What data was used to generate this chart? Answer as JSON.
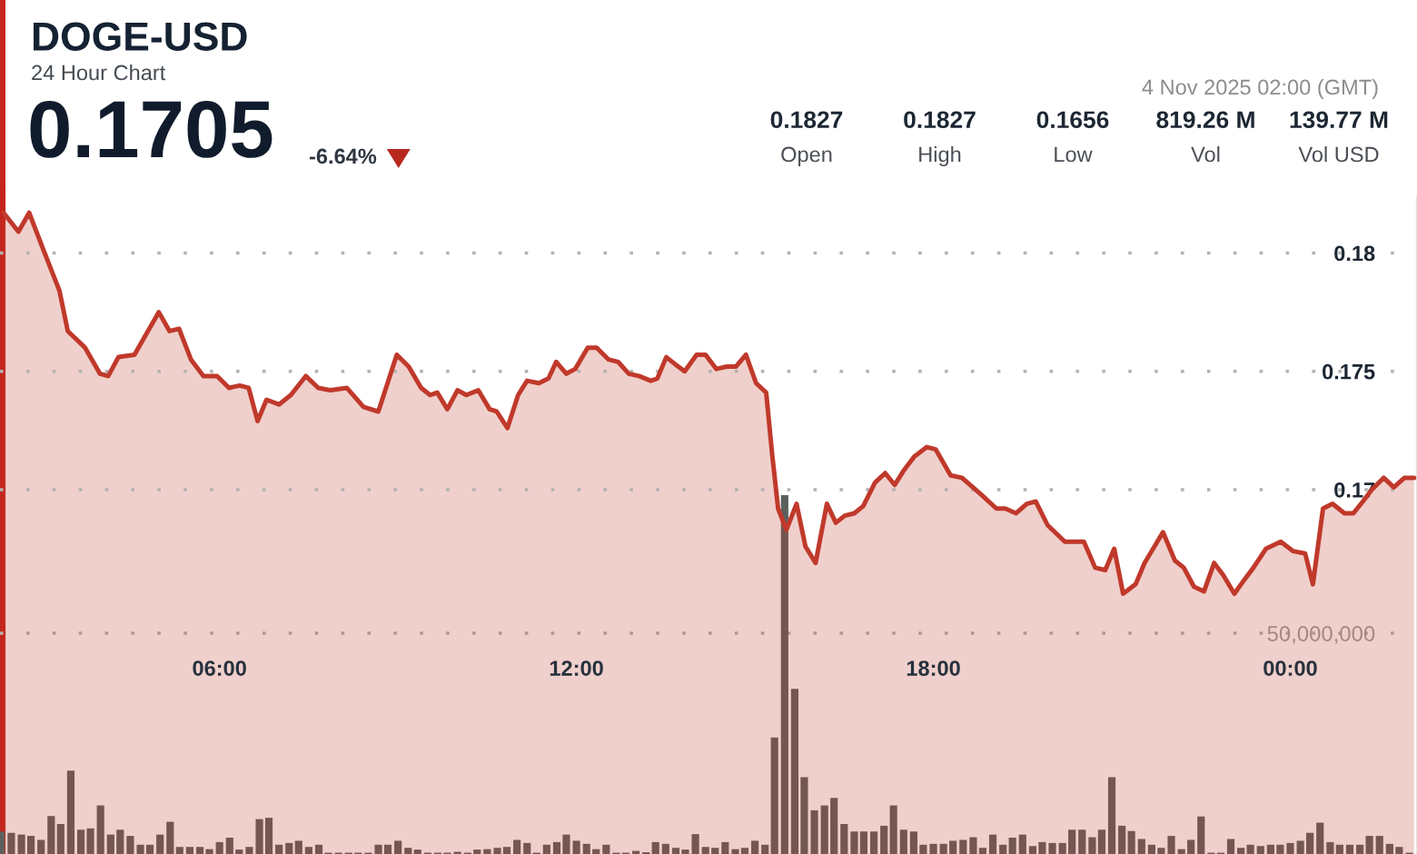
{
  "chart_data": {
    "type": "area",
    "title": "DOGE-USD",
    "subtitle": "24 Hour Chart",
    "annotations": [
      "0.1705",
      "-6.64%",
      "4 Nov 2025 02:00 (GMT)",
      "0.1827",
      "Open",
      "0.1827",
      "High",
      "0.1656",
      "Low",
      "819.26 M",
      "Vol",
      "139.77 M",
      "Vol USD"
    ],
    "xlim": [
      2.31,
      26.13
    ],
    "xticks": [
      {
        "value": 6,
        "label": "06:00"
      },
      {
        "value": 12,
        "label": "12:00"
      },
      {
        "value": 18,
        "label": "18:00"
      },
      {
        "value": 24,
        "label": "00:00"
      }
    ],
    "ylim": [
      0.1546,
      0.1824
    ],
    "yticks": [
      0.17,
      0.175,
      0.18
    ],
    "y2lim": [
      0,
      149000000
    ],
    "y2ticks": [
      {
        "value": 50000000,
        "label": "50,000,000"
      }
    ],
    "grid": "y",
    "series": [
      {
        "color": "#c0392b",
        "x": [
          2.37,
          2.62,
          2.8,
          3.03,
          3.31,
          3.45,
          3.74,
          3.99,
          4.13,
          4.3,
          4.57,
          4.98,
          5.16,
          5.32,
          5.52,
          5.73,
          5.96,
          6.16,
          6.34,
          6.49,
          6.64,
          6.79,
          7.0,
          7.2,
          7.45,
          7.66,
          7.86,
          8.14,
          8.42,
          8.67,
          8.98,
          9.18,
          9.39,
          9.54,
          9.66,
          9.83,
          10.0,
          10.15,
          10.35,
          10.54,
          10.66,
          10.84,
          11.02,
          11.17,
          11.37,
          11.53,
          11.66,
          11.83,
          11.98,
          12.19,
          12.34,
          12.54,
          12.7,
          12.88,
          13.05,
          13.25,
          13.36,
          13.51,
          13.66,
          13.82,
          14.02,
          14.17,
          14.35,
          14.53,
          14.68,
          14.85,
          15.02,
          15.19,
          15.29,
          15.39,
          15.53,
          15.7,
          15.85,
          16.02,
          16.21,
          16.36,
          16.51,
          16.67,
          16.82,
          17.02,
          17.19,
          17.35,
          17.5,
          17.68,
          17.89,
          18.04,
          18.29,
          18.48,
          18.8,
          19.06,
          19.21,
          19.39,
          19.57,
          19.72,
          19.92,
          20.21,
          20.53,
          20.72,
          20.89,
          21.04,
          21.19,
          21.4,
          21.55,
          21.86,
          22.06,
          22.21,
          22.38,
          22.55,
          22.72,
          22.87,
          23.06,
          23.23,
          23.38,
          23.59,
          23.84,
          24.05,
          24.25,
          24.38,
          24.55,
          24.71,
          24.91,
          25.06,
          25.22,
          25.37,
          25.57,
          25.74,
          25.92,
          26.08
        ],
        "values": [
          0.1817,
          0.1809,
          0.1817,
          0.1802,
          0.1784,
          0.1767,
          0.176,
          0.1749,
          0.1748,
          0.1756,
          0.1757,
          0.1775,
          0.1767,
          0.1768,
          0.1755,
          0.1748,
          0.1748,
          0.1743,
          0.1744,
          0.1743,
          0.1729,
          0.1738,
          0.1736,
          0.174,
          0.1748,
          0.1743,
          0.1742,
          0.1743,
          0.1735,
          0.1733,
          0.1757,
          0.1752,
          0.1743,
          0.174,
          0.1741,
          0.1734,
          0.1742,
          0.174,
          0.1742,
          0.1734,
          0.1733,
          0.1726,
          0.174,
          0.1746,
          0.1745,
          0.1747,
          0.1754,
          0.1749,
          0.1751,
          0.176,
          0.176,
          0.1755,
          0.1754,
          0.1749,
          0.1748,
          0.1746,
          0.1747,
          0.1756,
          0.1753,
          0.175,
          0.1757,
          0.1757,
          0.1751,
          0.1752,
          0.1752,
          0.1757,
          0.1745,
          0.1741,
          0.1715,
          0.1692,
          0.1683,
          0.1694,
          0.1676,
          0.1669,
          0.1694,
          0.1686,
          0.1689,
          0.169,
          0.1693,
          0.1703,
          0.1707,
          0.1702,
          0.1708,
          0.1714,
          0.1718,
          0.1717,
          0.1706,
          0.1705,
          0.1698,
          0.1692,
          0.1692,
          0.169,
          0.1694,
          0.1695,
          0.1685,
          0.1678,
          0.1678,
          0.1667,
          0.1666,
          0.1675,
          0.1656,
          0.166,
          0.1669,
          0.1682,
          0.167,
          0.1667,
          0.1659,
          0.1657,
          0.1669,
          0.1664,
          0.1656,
          0.1662,
          0.1667,
          0.1675,
          0.1678,
          0.1674,
          0.1673,
          0.166,
          0.1692,
          0.1694,
          0.169,
          0.169,
          0.1695,
          0.17,
          0.1705,
          0.1701,
          0.1705,
          0.1705
        ]
      },
      {
        "type": "bar",
        "axis": "y2",
        "color": "#5b605d",
        "x": [
          2.33,
          2.5,
          2.67,
          2.83,
          3.0,
          3.17,
          3.33,
          3.5,
          3.67,
          3.83,
          4.0,
          4.17,
          4.33,
          4.5,
          4.67,
          4.83,
          5.0,
          5.17,
          5.33,
          5.5,
          5.67,
          5.83,
          6.0,
          6.17,
          6.33,
          6.5,
          6.67,
          6.83,
          7.0,
          7.17,
          7.33,
          7.5,
          7.67,
          7.83,
          8.0,
          8.17,
          8.33,
          8.5,
          8.67,
          8.83,
          9.0,
          9.17,
          9.33,
          9.5,
          9.67,
          9.83,
          10.0,
          10.17,
          10.33,
          10.5,
          10.67,
          10.83,
          11.0,
          11.17,
          11.33,
          11.5,
          11.67,
          11.83,
          12.0,
          12.17,
          12.33,
          12.5,
          12.67,
          12.83,
          13.0,
          13.17,
          13.33,
          13.5,
          13.67,
          13.83,
          14.0,
          14.17,
          14.33,
          14.5,
          14.67,
          14.83,
          15.0,
          15.17,
          15.33,
          15.5,
          15.67,
          15.83,
          16.0,
          16.17,
          16.33,
          16.5,
          16.67,
          16.83,
          17.0,
          17.17,
          17.33,
          17.5,
          17.67,
          17.83,
          18.0,
          18.17,
          18.33,
          18.5,
          18.67,
          18.83,
          19.0,
          19.17,
          19.33,
          19.5,
          19.67,
          19.83,
          20.0,
          20.17,
          20.33,
          20.5,
          20.67,
          20.83,
          21.0,
          21.17,
          21.33,
          21.5,
          21.67,
          21.83,
          22.0,
          22.17,
          22.33,
          22.5,
          22.67,
          22.83,
          23.0,
          23.17,
          23.33,
          23.5,
          23.67,
          23.83,
          24.0,
          24.17,
          24.33,
          24.5,
          24.67,
          24.83,
          25.0,
          25.17,
          25.33,
          25.5,
          25.67,
          25.83,
          26.0
        ],
        "values": [
          5100000,
          4800000,
          4400000,
          4100000,
          3200000,
          8600000,
          6800000,
          18900000,
          5500000,
          5800000,
          11000000,
          4400000,
          5500000,
          4100000,
          2100000,
          2100000,
          4400000,
          7300000,
          1600000,
          1600000,
          1600000,
          1100000,
          2700000,
          3700000,
          1000000,
          1600000,
          7900000,
          8200000,
          2100000,
          2500000,
          3000000,
          1600000,
          2100000,
          300000,
          300000,
          300000,
          300000,
          300000,
          2100000,
          2100000,
          3000000,
          1400000,
          1000000,
          300000,
          300000,
          300000,
          500000,
          300000,
          1000000,
          1100000,
          1400000,
          1600000,
          3200000,
          2500000,
          300000,
          2100000,
          2700000,
          4400000,
          3000000,
          2300000,
          1100000,
          2100000,
          300000,
          300000,
          700000,
          400000,
          2700000,
          2300000,
          1400000,
          1000000,
          4500000,
          1600000,
          1400000,
          2700000,
          1100000,
          1400000,
          3000000,
          2100000,
          26400000,
          81300000,
          37400000,
          17400000,
          9900000,
          11000000,
          12700000,
          6800000,
          5100000,
          5100000,
          5100000,
          6400000,
          11000000,
          5500000,
          5100000,
          2100000,
          2300000,
          2300000,
          3000000,
          3200000,
          3800000,
          1400000,
          4400000,
          2100000,
          3700000,
          4400000,
          1800000,
          2700000,
          2500000,
          2500000,
          5500000,
          5500000,
          3800000,
          5500000,
          17400000,
          6400000,
          5200000,
          3400000,
          2100000,
          1400000,
          4100000,
          1100000,
          3200000,
          8500000,
          300000,
          300000,
          3400000,
          1400000,
          2100000,
          1800000,
          2100000,
          2100000,
          2500000,
          3000000,
          4800000,
          7100000,
          2700000,
          2100000,
          2100000,
          2100000,
          4100000,
          4100000,
          2300000,
          1600000,
          300000
        ]
      }
    ]
  }
}
